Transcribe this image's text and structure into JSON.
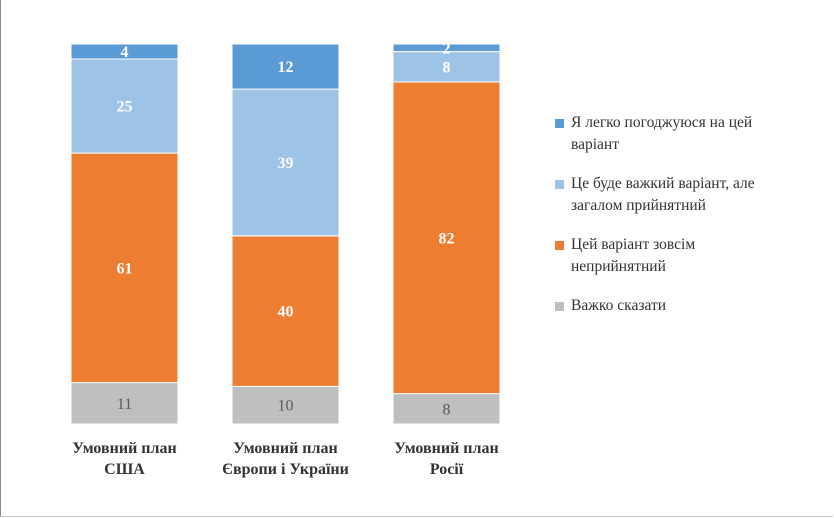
{
  "chart_data": {
    "type": "bar",
    "stacked": true,
    "categories": [
      [
        "Умовний план",
        "США"
      ],
      [
        "Умовний план",
        "Європи і України"
      ],
      [
        "Умовний план",
        "Росії"
      ]
    ],
    "series": [
      {
        "name": "Я легко погоджуюся на цей варіант",
        "legend_lines": [
          "Я легко погоджуюся на цей",
          "варіант"
        ],
        "color": "#5b9bd5",
        "label_color": "#ffffff",
        "values": [
          4,
          12,
          2
        ]
      },
      {
        "name": "Це буде важкий варіант, але загалом прийнятний",
        "legend_lines": [
          "Це буде важкий варіант, але",
          "загалом прийнятний"
        ],
        "color": "#9dc3e6",
        "label_color": "#ffffff",
        "values": [
          25,
          39,
          8
        ]
      },
      {
        "name": "Цей варіант зовсім неприйнятний",
        "legend_lines": [
          "Цей варіант зовсім",
          "неприйнятний"
        ],
        "color": "#ed7d31",
        "label_color": "#ffffff",
        "values": [
          61,
          40,
          82
        ]
      },
      {
        "name": "Важко сказати",
        "legend_lines": [
          "Важко сказати"
        ],
        "color": "#bfbfbf",
        "label_color": "#595959",
        "values": [
          11,
          10,
          8
        ]
      }
    ],
    "stack_order": "bottom-to-top: Важко сказати, Цей варіант зовсім неприйнятний, Це буде важкий варіант, Я легко погоджуюся",
    "ylim": [
      0,
      100
    ],
    "grid": false,
    "legend_position": "right",
    "title": "",
    "xlabel": "",
    "ylabel": ""
  }
}
